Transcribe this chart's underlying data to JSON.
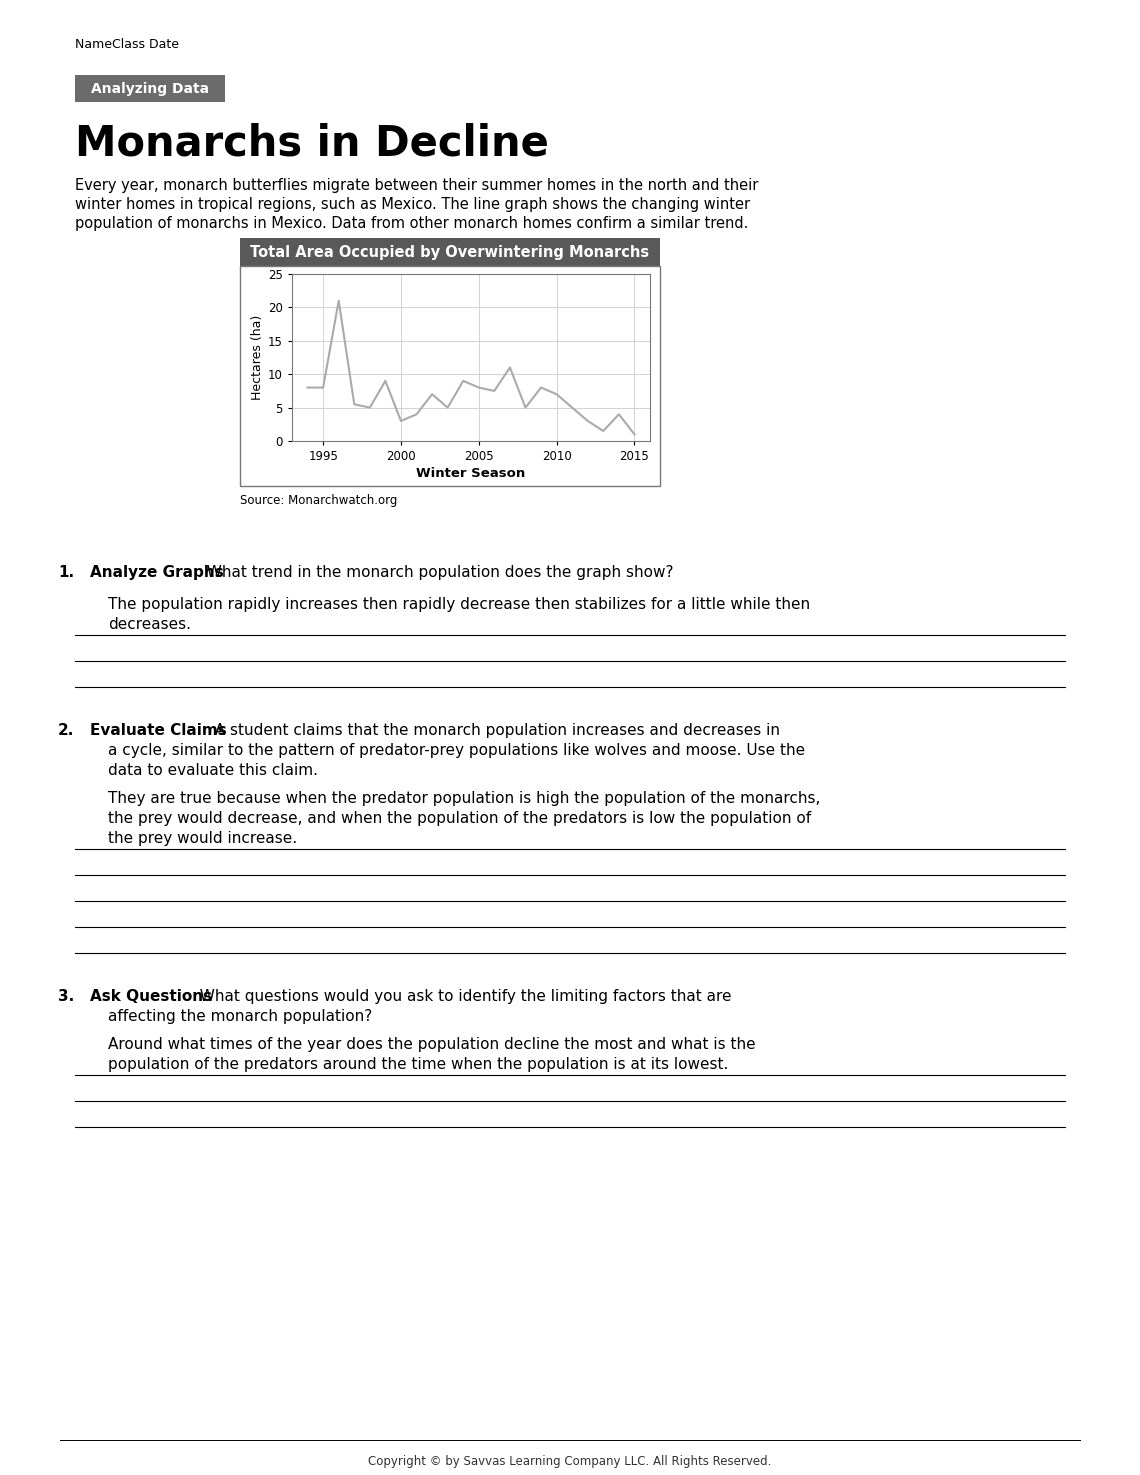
{
  "page_title": "NameClass Date",
  "badge_text": "Analyzing Data",
  "badge_color": "#6b6b6b",
  "main_title": "Monarchs in Decline",
  "intro_lines": [
    "Every year, monarch butterflies migrate between their summer homes in the north and their",
    "winter homes in tropical regions, such as Mexico. The line graph shows the changing winter",
    "population of monarchs in Mexico. Data from other monarch homes confirm a similar trend."
  ],
  "chart_title": "Total Area Occupied by Overwintering Monarchs",
  "chart_title_bg": "#595959",
  "chart_title_color": "#ffffff",
  "years": [
    1994,
    1995,
    1996,
    1997,
    1998,
    1999,
    2000,
    2001,
    2002,
    2003,
    2004,
    2005,
    2006,
    2007,
    2008,
    2009,
    2010,
    2011,
    2012,
    2013,
    2014,
    2015
  ],
  "hectares": [
    8,
    8,
    21,
    5.5,
    5,
    9,
    3,
    4,
    7,
    5,
    9,
    8,
    7.5,
    11,
    5,
    8,
    7,
    5,
    3,
    1.5,
    4,
    1
  ],
  "xlabel": "Winter Season",
  "ylabel": "Hectares (ha)",
  "xlim": [
    1993,
    2016
  ],
  "ylim": [
    0,
    25
  ],
  "xticks": [
    1995,
    2000,
    2005,
    2010,
    2015
  ],
  "yticks": [
    0,
    5,
    10,
    15,
    20,
    25
  ],
  "source_text": "Source: Monarchwatch.org",
  "line_color": "#aaaaaa",
  "grid_color": "#cccccc",
  "footer_text": "Copyright © by Savvas Learning Company LLC. All Rights Reserved."
}
